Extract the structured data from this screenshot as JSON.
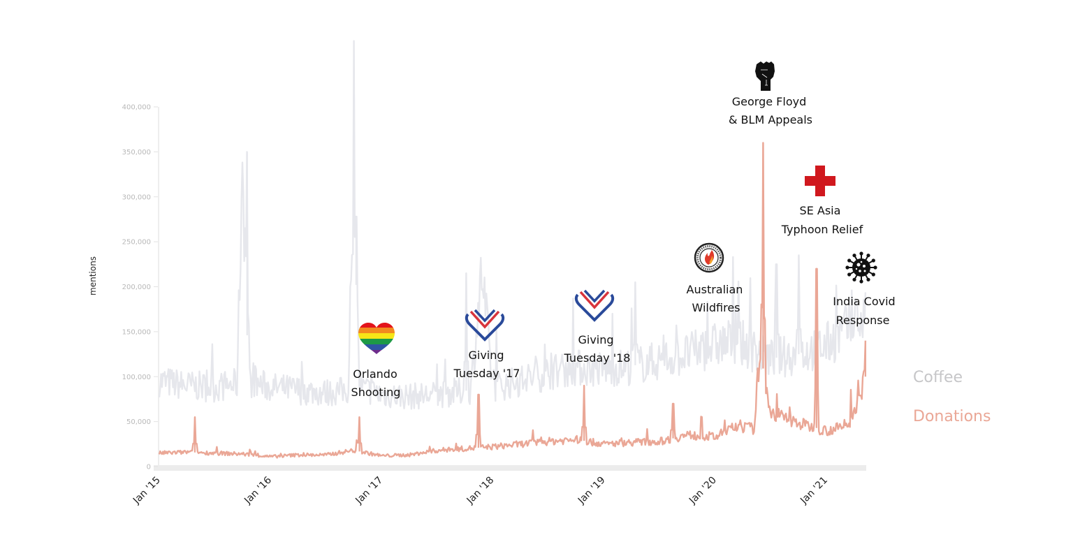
{
  "chart_data": {
    "type": "line",
    "title": "",
    "xlabel": "",
    "ylabel": "mentions",
    "ylim": [
      0,
      400000
    ],
    "xlim": [
      "2015-01",
      "2021-05"
    ],
    "grid": false,
    "legend_position": "right",
    "y_ticks": [
      0,
      50000,
      100000,
      150000,
      200000,
      250000,
      300000,
      350000,
      400000
    ],
    "y_tick_labels": [
      "0",
      "50,000",
      "100,000",
      "150,000",
      "200,000",
      "250,000",
      "300,000",
      "350,000",
      "400,000"
    ],
    "x_tick_labels": [
      "Jan '15",
      "Jan '16",
      "Jan '17",
      "Jan '18",
      "Jan '19",
      "Jan '20",
      "Jan '21"
    ],
    "x_ticks_year": [
      2015,
      2016,
      2017,
      2018,
      2019,
      2020,
      2021
    ],
    "series": [
      {
        "name": "Coffee",
        "color": "#e6e7ec",
        "x_year": [
          2015.0,
          2015.25,
          2015.5,
          2015.7,
          2015.75,
          2015.8,
          2016.0,
          2016.25,
          2016.5,
          2016.7,
          2016.75,
          2016.8,
          2017.0,
          2017.25,
          2017.5,
          2017.8,
          2017.9,
          2018.0,
          2018.25,
          2018.5,
          2018.75,
          2019.0,
          2019.25,
          2019.5,
          2019.75,
          2020.0,
          2020.2,
          2020.4,
          2020.5,
          2020.75,
          2021.0,
          2021.25,
          2021.35
        ],
        "values": [
          95000,
          90000,
          88000,
          92000,
          350000,
          95000,
          88000,
          85000,
          82000,
          85000,
          278000,
          88000,
          80000,
          78000,
          80000,
          85000,
          215000,
          88000,
          95000,
          105000,
          110000,
          108000,
          112000,
          118000,
          125000,
          135000,
          140000,
          125000,
          120000,
          125000,
          135000,
          160000,
          165000
        ],
        "spikes": [
          {
            "x_year": 2015.79,
            "value": 350000
          },
          {
            "x_year": 2016.77,
            "value": 278000
          },
          {
            "x_year": 2017.76,
            "value": 215000
          },
          {
            "x_year": 2019.28,
            "value": 205000
          },
          {
            "x_year": 2020.55,
            "value": 225000
          },
          {
            "x_year": 2020.75,
            "value": 235000
          }
        ]
      },
      {
        "name": "Donations",
        "color": "#eaa796",
        "x_year": [
          2015.0,
          2015.25,
          2015.5,
          2015.75,
          2016.0,
          2016.25,
          2016.5,
          2016.75,
          2017.0,
          2017.25,
          2017.5,
          2017.75,
          2018.0,
          2018.25,
          2018.5,
          2018.75,
          2019.0,
          2019.25,
          2019.5,
          2019.75,
          2020.0,
          2020.2,
          2020.35,
          2020.4,
          2020.5,
          2020.75,
          2021.0,
          2021.2,
          2021.35
        ],
        "values": [
          15000,
          16000,
          15000,
          14000,
          11000,
          13000,
          13000,
          18000,
          12000,
          13000,
          18000,
          20000,
          22000,
          25000,
          28000,
          30000,
          25000,
          27000,
          28000,
          35000,
          33000,
          45000,
          42000,
          130000,
          60000,
          48000,
          40000,
          45000,
          100000
        ],
        "spikes": [
          {
            "x_year": 2015.32,
            "value": 55000
          },
          {
            "x_year": 2016.8,
            "value": 55000
          },
          {
            "x_year": 2017.87,
            "value": 80000
          },
          {
            "x_year": 2018.82,
            "value": 90000
          },
          {
            "x_year": 2019.62,
            "value": 70000
          },
          {
            "x_year": 2020.43,
            "value": 360000
          },
          {
            "x_year": 2020.91,
            "value": 220000
          },
          {
            "x_year": 2021.35,
            "value": 140000
          }
        ]
      }
    ],
    "annotations": [
      {
        "label_lines": [
          "Orlando",
          "Shooting"
        ],
        "icon": "rainbow-heart-icon",
        "x_year": 2016.44
      },
      {
        "label_lines": [
          "Giving",
          "Tuesday '17"
        ],
        "icon": "giving-tuesday-heart-icon",
        "x_year": 2017.92
      },
      {
        "label_lines": [
          "Giving",
          "Tuesday '18"
        ],
        "icon": "giving-tuesday-heart-icon",
        "x_year": 2018.9
      },
      {
        "label_lines": [
          "Australian",
          "Wildfires"
        ],
        "icon": "bushfire-foundation-logo-icon",
        "x_year": 2019.93
      },
      {
        "label_lines": [
          "George Floyd",
          "& BLM Appeals"
        ],
        "icon": "raised-fist-icon",
        "x_year": 2020.44
      },
      {
        "label_lines": [
          "SE Asia",
          "Typhoon Relief"
        ],
        "icon": "red-cross-icon",
        "x_year": 2020.94
      },
      {
        "label_lines": [
          "India Covid",
          "Response"
        ],
        "icon": "virus-icon",
        "x_year": 2021.3
      }
    ],
    "legend": [
      {
        "label": "Coffee",
        "color": "#c6c6c8"
      },
      {
        "label": "Donations",
        "color": "#eaa796"
      }
    ]
  }
}
